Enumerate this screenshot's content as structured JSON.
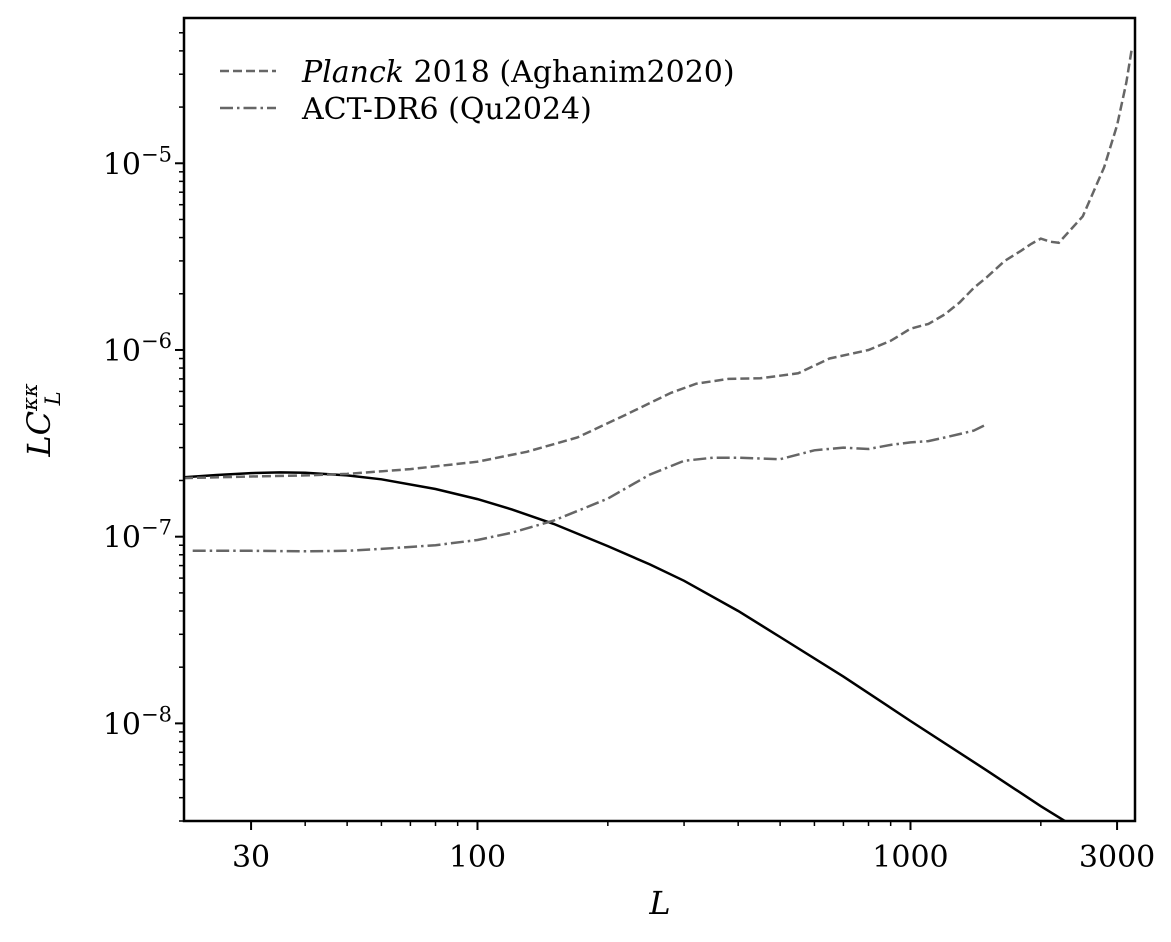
{
  "chart_data": {
    "type": "line",
    "xlabel": "L",
    "ylabel": "LCκκL",
    "xscale": "log",
    "yscale": "log",
    "xlim": [
      21,
      3300
    ],
    "ylim": [
      3e-09,
      6e-05
    ],
    "x_ticks": [
      {
        "value": 30,
        "label": "30"
      },
      {
        "value": 100,
        "label": "100"
      },
      {
        "value": 1000,
        "label": "1000"
      },
      {
        "value": 3000,
        "label": "3000"
      }
    ],
    "y_ticks": [
      {
        "value": 1e-08,
        "base": "10",
        "exp": "−8"
      },
      {
        "value": 1e-07,
        "base": "10",
        "exp": "−7"
      },
      {
        "value": 1e-06,
        "base": "10",
        "exp": "−6"
      },
      {
        "value": 1e-05,
        "base": "10",
        "exp": "−5"
      }
    ],
    "legend": {
      "placement": "top-left",
      "entries": [
        {
          "italic": "Planck",
          "text": " 2018 (Aghanim2020)"
        },
        {
          "italic": "",
          "text": "ACT-DR6 (Qu2024)"
        }
      ]
    },
    "series": [
      {
        "style": "solid",
        "color": "#000000",
        "x": [
          21,
          25,
          30,
          35,
          40,
          50,
          60,
          80,
          100,
          120,
          150,
          200,
          250,
          300,
          400,
          500,
          700,
          1000,
          1500,
          2000,
          2300
        ],
        "y": [
          2.08e-07,
          2.14e-07,
          2.19e-07,
          2.21e-07,
          2.2e-07,
          2.13e-07,
          2.03e-07,
          1.8e-07,
          1.59e-07,
          1.4e-07,
          1.17e-07,
          8.9e-08,
          7.1e-08,
          5.8e-08,
          4e-08,
          2.9e-08,
          1.78e-08,
          1.03e-08,
          5.6e-09,
          3.6e-09,
          2.95e-09
        ]
      },
      {
        "style": "dashed",
        "color": "#666666",
        "legend_index": 0,
        "x": [
          21,
          30,
          40,
          50,
          70,
          100,
          130,
          170,
          220,
          280,
          320,
          380,
          450,
          550,
          650,
          800,
          900,
          1000,
          1100,
          1200,
          1300,
          1400,
          1500,
          1650,
          1800,
          1900,
          2000,
          2100,
          2200,
          2500,
          2800,
          3000,
          3150,
          3250
        ],
        "y": [
          2.06e-07,
          2.1e-07,
          2.13e-07,
          2.17e-07,
          2.3e-07,
          2.52e-07,
          2.85e-07,
          3.4e-07,
          4.5e-07,
          5.9e-07,
          6.6e-07,
          7e-07,
          7.05e-07,
          7.5e-07,
          9e-07,
          1e-06,
          1.12e-06,
          1.3e-06,
          1.38e-06,
          1.55e-06,
          1.8e-06,
          2.15e-06,
          2.45e-06,
          3e-06,
          3.4e-06,
          3.7e-06,
          3.95e-06,
          3.8e-06,
          3.75e-06,
          5.2e-06,
          9.5e-06,
          1.6e-05,
          2.7e-05,
          4.2e-05
        ]
      },
      {
        "style": "dashdot",
        "color": "#666666",
        "legend_index": 1,
        "x": [
          22,
          30,
          40,
          50,
          60,
          80,
          100,
          120,
          150,
          200,
          250,
          300,
          350,
          400,
          500,
          600,
          700,
          800,
          900,
          1000,
          1100,
          1200,
          1300,
          1400,
          1500
        ],
        "y": [
          8.4e-08,
          8.4e-08,
          8.35e-08,
          8.4e-08,
          8.6e-08,
          9e-08,
          9.6e-08,
          1.05e-07,
          1.22e-07,
          1.6e-07,
          2.15e-07,
          2.55e-07,
          2.65e-07,
          2.65e-07,
          2.6e-07,
          2.9e-07,
          3e-07,
          2.95e-07,
          3.1e-07,
          3.2e-07,
          3.25e-07,
          3.4e-07,
          3.55e-07,
          3.7e-07,
          4e-07
        ]
      }
    ]
  }
}
